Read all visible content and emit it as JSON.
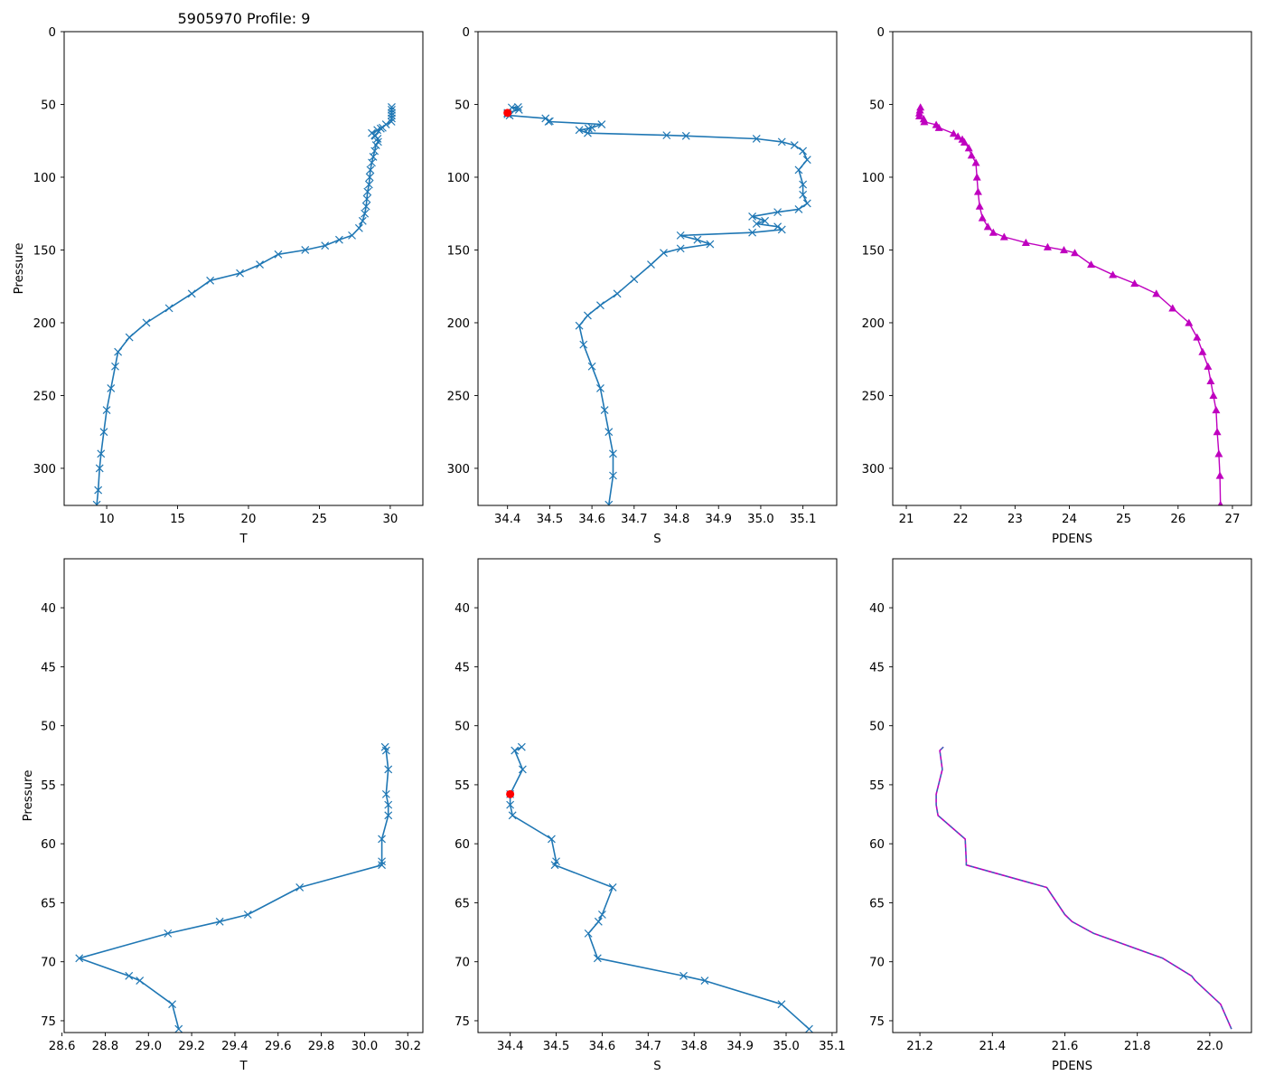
{
  "title": "5905970 Profile: 9",
  "colors": {
    "line": "#1f77b4",
    "flag": "#ff0000",
    "density": "#bf00bf",
    "density_dash": "#1f77b4"
  },
  "chart_data": [
    {
      "id": "top-temp",
      "type": "line",
      "xlabel": "T",
      "ylabel": "Pressure",
      "title": "5905970 Profile: 9",
      "xlim": [
        7.0,
        32.3
      ],
      "ylim": [
        325.5,
        0
      ],
      "xticks": [
        10,
        15,
        20,
        25,
        30
      ],
      "xtick_labels": [
        "10",
        "15",
        "20",
        "25",
        "30"
      ],
      "yticks": [
        0,
        50,
        100,
        150,
        200,
        250,
        300
      ],
      "ytick_labels": [
        "0",
        "50",
        "100",
        "150",
        "200",
        "250",
        "300"
      ],
      "marker": "x",
      "line_color": "#1f77b4",
      "x": [
        30.1,
        30.1,
        30.1,
        30.1,
        30.1,
        30.08,
        29.7,
        29.46,
        29.33,
        29.09,
        28.7,
        28.9,
        28.95,
        29.11,
        29.14,
        29.0,
        28.9,
        28.8,
        28.7,
        28.6,
        28.55,
        28.5,
        28.4,
        28.35,
        28.3,
        28.2,
        28.05,
        27.8,
        27.3,
        26.4,
        25.4,
        24.0,
        22.1,
        20.8,
        19.4,
        17.3,
        16.0,
        14.4,
        12.8,
        11.6,
        10.8,
        10.6,
        10.3,
        10.0,
        9.8,
        9.6,
        9.5,
        9.4,
        9.3
      ],
      "y": [
        51.8,
        53.7,
        55.8,
        57.6,
        59.6,
        61.8,
        63.7,
        66.0,
        66.6,
        67.6,
        69.7,
        71.2,
        71.6,
        73.6,
        75.7,
        78,
        82,
        86,
        90,
        95,
        100,
        105,
        110,
        115,
        120,
        125,
        130,
        135,
        140,
        143,
        147,
        150,
        153,
        160,
        166,
        171,
        180,
        190,
        200,
        210,
        220,
        230,
        245,
        260,
        275,
        290,
        300,
        315,
        325
      ]
    },
    {
      "id": "top-sal",
      "type": "line",
      "xlabel": "S",
      "ylabel": "",
      "xlim": [
        34.33,
        35.18
      ],
      "ylim": [
        325.5,
        0
      ],
      "xticks": [
        34.4,
        34.5,
        34.6,
        34.7,
        34.8,
        34.9,
        35.0,
        35.1
      ],
      "xtick_labels": [
        "34.4",
        "34.5",
        "34.6",
        "34.7",
        "34.8",
        "34.9",
        "35.0",
        "35.1"
      ],
      "yticks": [
        0,
        50,
        100,
        150,
        200,
        250,
        300
      ],
      "ytick_labels": [
        "0",
        "50",
        "100",
        "150",
        "200",
        "250",
        "300"
      ],
      "marker": "x",
      "line_color": "#1f77b4",
      "flag_point": {
        "x": 34.4,
        "y": 55.8
      },
      "x": [
        34.425,
        34.41,
        34.427,
        34.4,
        34.4,
        34.405,
        34.49,
        34.5,
        34.497,
        34.623,
        34.6,
        34.592,
        34.57,
        34.59,
        34.777,
        34.823,
        34.99,
        35.05,
        35.08,
        35.1,
        35.11,
        35.09,
        35.1,
        35.1,
        35.11,
        35.09,
        35.04,
        34.98,
        35.01,
        34.99,
        35.04,
        35.05,
        34.98,
        34.81,
        34.85,
        34.88,
        34.81,
        34.77,
        34.74,
        34.7,
        34.66,
        34.62,
        34.59,
        34.57,
        34.58,
        34.6,
        34.62,
        34.63,
        34.64,
        34.65,
        34.65,
        34.64
      ],
      "y": [
        51.8,
        52.1,
        53.7,
        55.8,
        56.7,
        57.6,
        59.6,
        61.5,
        61.8,
        63.7,
        66.0,
        66.6,
        67.6,
        69.7,
        71.2,
        71.6,
        73.6,
        75.7,
        78,
        82,
        88,
        95,
        105,
        112,
        118,
        122,
        124,
        127,
        130,
        132,
        134,
        136,
        138,
        140,
        143,
        146,
        149,
        152,
        160,
        170,
        180,
        188,
        195,
        202,
        215,
        230,
        245,
        260,
        275,
        290,
        305,
        325
      ]
    },
    {
      "id": "top-dens",
      "type": "scatter",
      "xlabel": "PDENS",
      "ylabel": "",
      "xlim": [
        20.75,
        27.35
      ],
      "ylim": [
        325.5,
        0
      ],
      "xticks": [
        21,
        22,
        23,
        24,
        25,
        26,
        27
      ],
      "xtick_labels": [
        "21",
        "22",
        "23",
        "24",
        "25",
        "26",
        "27"
      ],
      "yticks": [
        0,
        50,
        100,
        150,
        200,
        250,
        300
      ],
      "ytick_labels": [
        "0",
        "50",
        "100",
        "150",
        "200",
        "250",
        "300"
      ],
      "marker": "triangle",
      "marker_color": "#bf00bf",
      "x": [
        21.26,
        21.25,
        21.24,
        21.24,
        21.32,
        21.33,
        21.55,
        21.6,
        21.87,
        21.95,
        22.03,
        22.07,
        22.15,
        22.2,
        22.28,
        22.3,
        22.32,
        22.35,
        22.4,
        22.5,
        22.6,
        22.8,
        23.2,
        23.6,
        23.9,
        24.1,
        24.4,
        24.8,
        25.2,
        25.6,
        25.9,
        26.2,
        26.35,
        26.45,
        26.55,
        26.6,
        26.65,
        26.7,
        26.72,
        26.75,
        26.77,
        26.78
      ],
      "y": [
        52,
        54,
        56,
        58,
        60,
        62,
        64,
        66,
        70,
        72,
        74,
        76,
        80,
        85,
        90,
        100,
        110,
        120,
        128,
        134,
        138,
        141,
        145,
        148,
        150,
        152,
        160,
        167,
        173,
        180,
        190,
        200,
        210,
        220,
        230,
        240,
        250,
        260,
        275,
        290,
        305,
        325
      ]
    },
    {
      "id": "bottom-temp",
      "type": "line",
      "xlabel": "T",
      "ylabel": "Pressure",
      "xlim": [
        28.61,
        30.27
      ],
      "ylim": [
        76.0,
        35.85
      ],
      "xticks": [
        28.6,
        28.8,
        29.0,
        29.2,
        29.4,
        29.6,
        29.8,
        30.0,
        30.2
      ],
      "xtick_labels": [
        "28.6",
        "28.8",
        "29.0",
        "29.2",
        "29.4",
        "29.6",
        "29.8",
        "30.0",
        "30.2"
      ],
      "yticks": [
        40,
        45,
        50,
        55,
        60,
        65,
        70,
        75
      ],
      "ytick_labels": [
        "40",
        "45",
        "50",
        "55",
        "60",
        "65",
        "70",
        "75"
      ],
      "marker": "x",
      "line_color": "#1f77b4",
      "x": [
        30.095,
        30.1,
        30.11,
        30.1,
        30.11,
        30.11,
        30.08,
        30.08,
        30.08,
        29.7,
        29.46,
        29.33,
        29.09,
        28.68,
        28.91,
        28.96,
        29.11,
        29.14
      ],
      "y": [
        51.8,
        52.1,
        53.7,
        55.8,
        56.7,
        57.6,
        59.6,
        61.5,
        61.8,
        63.7,
        66.0,
        66.6,
        67.6,
        69.7,
        71.2,
        71.6,
        73.6,
        75.7
      ]
    },
    {
      "id": "bottom-sal",
      "type": "line",
      "xlabel": "S",
      "ylabel": "",
      "xlim": [
        34.33,
        35.11
      ],
      "ylim": [
        76.0,
        35.85
      ],
      "xticks": [
        34.4,
        34.5,
        34.6,
        34.7,
        34.8,
        34.9,
        35.0,
        35.1
      ],
      "xtick_labels": [
        "34.4",
        "34.5",
        "34.6",
        "34.7",
        "34.8",
        "34.9",
        "35.0",
        "35.1"
      ],
      "yticks": [
        40,
        45,
        50,
        55,
        60,
        65,
        70,
        75
      ],
      "ytick_labels": [
        "40",
        "45",
        "50",
        "55",
        "60",
        "65",
        "70",
        "75"
      ],
      "marker": "x",
      "line_color": "#1f77b4",
      "flag_point": {
        "x": 34.4,
        "y": 55.8
      },
      "x": [
        34.425,
        34.41,
        34.427,
        34.4,
        34.4,
        34.405,
        34.49,
        34.5,
        34.497,
        34.623,
        34.6,
        34.592,
        34.57,
        34.59,
        34.777,
        34.823,
        34.99,
        35.05
      ],
      "y": [
        51.8,
        52.1,
        53.7,
        55.8,
        56.7,
        57.6,
        59.6,
        61.5,
        61.8,
        63.7,
        66.0,
        66.6,
        67.6,
        69.7,
        71.2,
        71.6,
        73.6,
        75.7
      ]
    },
    {
      "id": "bottom-dens",
      "type": "line",
      "xlabel": "PDENS",
      "ylabel": "",
      "xlim": [
        21.125,
        22.115
      ],
      "ylim": [
        76.0,
        35.85
      ],
      "xticks": [
        21.2,
        21.4,
        21.6,
        21.8,
        22.0
      ],
      "xtick_labels": [
        "21.2",
        "21.4",
        "21.6",
        "21.8",
        "22.0"
      ],
      "yticks": [
        40,
        45,
        50,
        55,
        60,
        65,
        70,
        75
      ],
      "ytick_labels": [
        "40",
        "45",
        "50",
        "55",
        "60",
        "65",
        "70",
        "75"
      ],
      "marker": "none",
      "line_color": "#bf00bf",
      "dash_color": "#1f77b4",
      "x": [
        21.265,
        21.255,
        21.262,
        21.245,
        21.245,
        21.25,
        21.325,
        21.328,
        21.328,
        21.55,
        21.6,
        21.62,
        21.68,
        21.87,
        21.95,
        21.96,
        22.03,
        22.06
      ],
      "y": [
        51.8,
        52.1,
        53.7,
        55.8,
        56.7,
        57.6,
        59.6,
        61.5,
        61.8,
        63.7,
        66.0,
        66.6,
        67.6,
        69.7,
        71.2,
        71.6,
        73.6,
        75.7
      ]
    }
  ]
}
